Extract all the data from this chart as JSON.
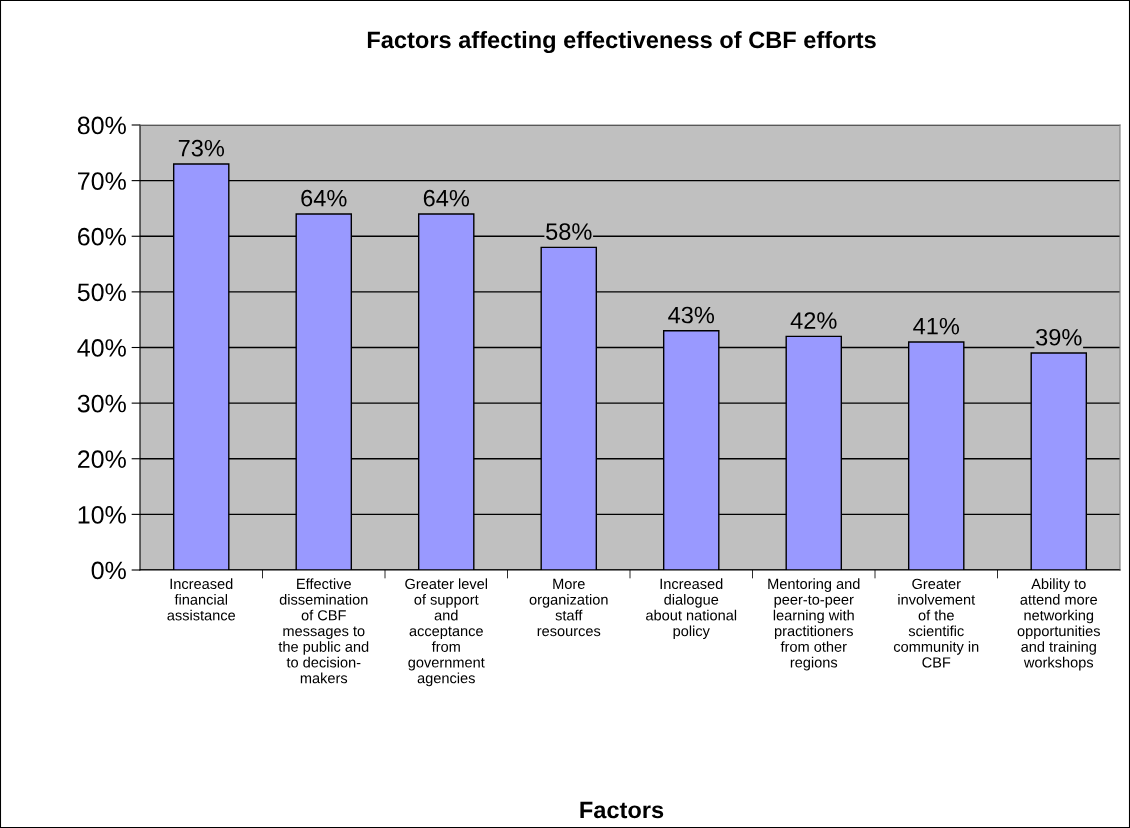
{
  "chart_data": {
    "type": "bar",
    "title": "Factors affecting effectiveness of CBF efforts",
    "xlabel": "Factors",
    "categories": [
      "Increased\nfinancial\nassistance",
      "Effective\ndissemination\nof CBF\nmessages to\nthe public and\nto decision-\nmakers",
      "Greater level\nof support\nand\nacceptance\nfrom\ngovernment\nagencies",
      "More\norganization\nstaff\nresources",
      "Increased\ndialogue\nabout national\npolicy",
      "Mentoring and\npeer-to-peer\nlearning with\npractitioners\nfrom other\nregions",
      "Greater\ninvolvement\nof the\nscientific\ncommunity in\nCBF",
      "Ability to\nattend more\nnetworking\nopportunities\nand training\nworkshops"
    ],
    "values": [
      73,
      64,
      64,
      58,
      43,
      42,
      41,
      39
    ],
    "value_labels": [
      "73%",
      "64%",
      "64%",
      "58%",
      "43%",
      "42%",
      "41%",
      "39%"
    ],
    "color": "#9999ff",
    "ylim": [
      0,
      80
    ],
    "yticks": [
      {
        "value": 0,
        "label": "0%"
      },
      {
        "value": 10,
        "label": "10%"
      },
      {
        "value": 20,
        "label": "20%"
      },
      {
        "value": 30,
        "label": "30%"
      },
      {
        "value": 40,
        "label": "40%"
      },
      {
        "value": 50,
        "label": "50%"
      },
      {
        "value": 60,
        "label": "60%"
      },
      {
        "value": 70,
        "label": "70%"
      },
      {
        "value": 80,
        "label": "80%"
      }
    ],
    "grid": "y"
  }
}
